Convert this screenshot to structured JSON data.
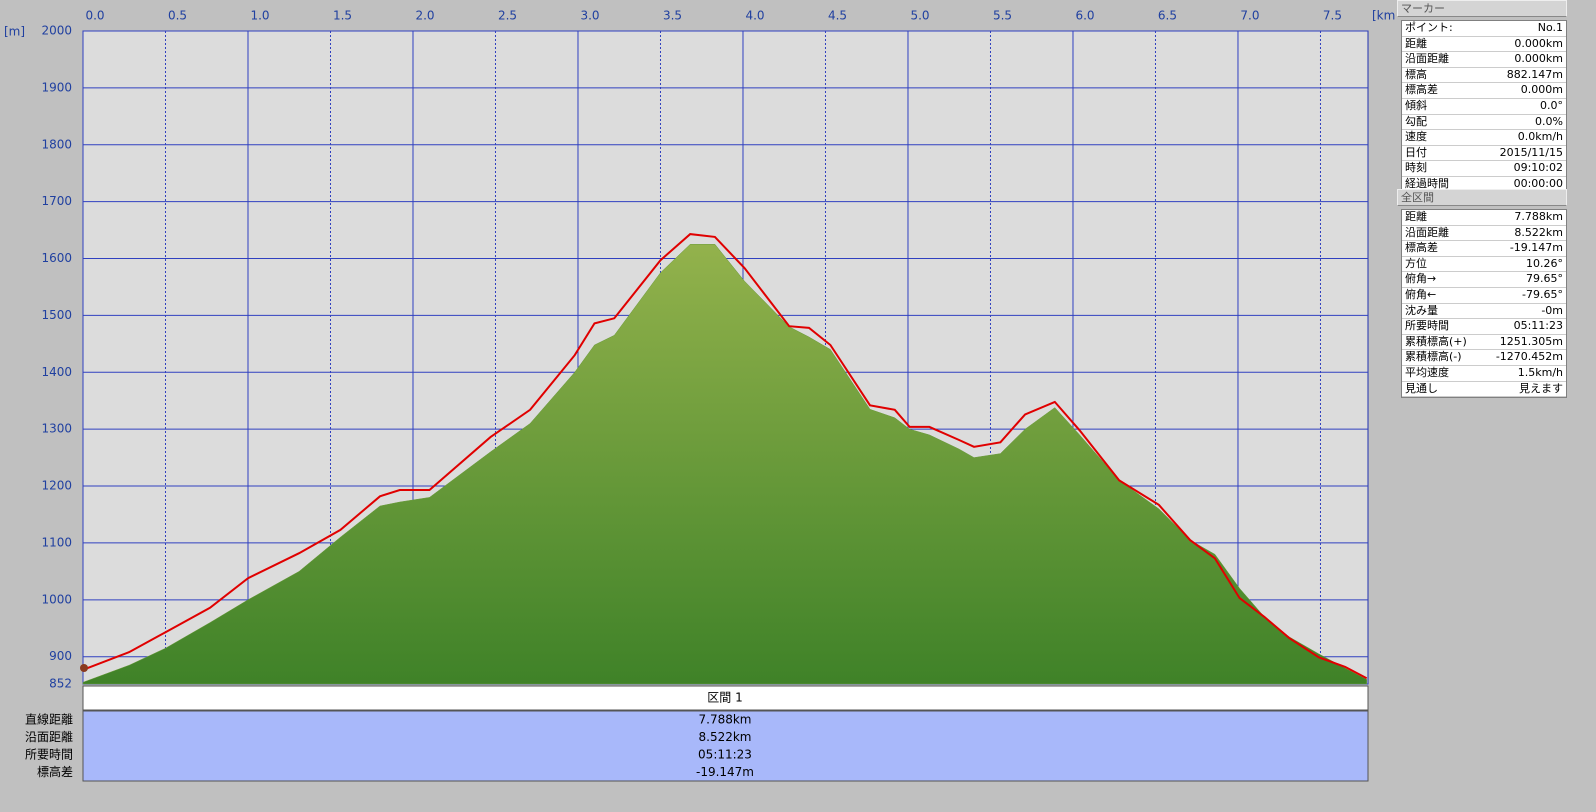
{
  "chart_data": {
    "type": "area-line",
    "x_unit": "[km]",
    "y_unit": "[m]",
    "x": [
      0,
      0.28,
      0.5,
      0.77,
      1.0,
      1.31,
      1.56,
      1.8,
      1.92,
      2.1,
      2.47,
      2.71,
      2.98,
      3.1,
      3.22,
      3.5,
      3.68,
      3.83,
      4.01,
      4.28,
      4.4,
      4.53,
      4.77,
      4.92,
      5.01,
      5.13,
      5.31,
      5.4,
      5.56,
      5.71,
      5.89,
      6.04,
      6.28,
      6.52,
      6.71,
      6.86,
      7.01,
      7.16,
      7.31,
      7.49,
      7.65,
      7.78
    ],
    "series": [
      {
        "color": "#6a9a3a",
        "values": [
          855,
          885,
          915,
          960,
          1000,
          1050,
          1110,
          1165,
          1172,
          1180,
          1260,
          1310,
          1400,
          1448,
          1465,
          1575,
          1625,
          1625,
          1560,
          1480,
          1462,
          1440,
          1335,
          1320,
          1300,
          1290,
          1265,
          1250,
          1257,
          1300,
          1338,
          1290,
          1210,
          1160,
          1105,
          1080,
          1020,
          970,
          935,
          905,
          880,
          860
        ]
      },
      {
        "color": "#e00000",
        "values": [
          877,
          908,
          943,
          986,
          1038,
          1082,
          1123,
          1182,
          1193,
          1193,
          1286,
          1334,
          1430,
          1486,
          1495,
          1597,
          1643,
          1638,
          1583,
          1481,
          1478,
          1448,
          1342,
          1334,
          1304,
          1304,
          1281,
          1269,
          1277,
          1326,
          1348,
          1298,
          1210,
          1167,
          1105,
          1073,
          1003,
          970,
          933,
          899,
          882,
          862
        ]
      }
    ],
    "xlim": [
      0,
      7.788
    ],
    "xticks": [
      {
        "value": 0,
        "label": "0.0"
      },
      0.5,
      {
        "value": 1,
        "label": "1.0"
      },
      1.5,
      {
        "value": 2,
        "label": "2.0"
      },
      2.5,
      {
        "value": 3,
        "label": "3.0"
      },
      3.5,
      {
        "value": 4,
        "label": "4.0"
      },
      4.5,
      {
        "value": 5,
        "label": "5.0"
      },
      5.5,
      {
        "value": 6,
        "label": "6.0"
      },
      6.5,
      {
        "value": 7,
        "label": "7.0"
      },
      7.5
    ],
    "ylim": [
      852,
      2000
    ],
    "yticks": [
      852,
      900,
      1000,
      1100,
      1200,
      1300,
      1400,
      1500,
      1600,
      1700,
      1800,
      1900,
      2000
    ],
    "grid": true
  },
  "section_table": {
    "header": "区間 1",
    "rows": [
      [
        "直線距離",
        "7.788km"
      ],
      [
        "沿面距離",
        "8.522km"
      ],
      [
        "所要時間",
        "05:11:23"
      ],
      [
        "標高差",
        "-19.147m"
      ]
    ]
  },
  "marker_panel": {
    "title": "マーカー",
    "rows": [
      [
        "ポイント:",
        "No.1"
      ],
      [
        "距離",
        "0.000km"
      ],
      [
        "沿面距離",
        "0.000km"
      ],
      [
        "標高",
        "882.147m"
      ],
      [
        "標高差",
        "0.000m"
      ],
      [
        "傾斜",
        "0.0°"
      ],
      [
        "勾配",
        "0.0%"
      ],
      [
        "速度",
        "0.0km/h"
      ],
      [
        "日付",
        "2015/11/15"
      ],
      [
        "時刻",
        "09:10:02"
      ],
      [
        "経過時間",
        "00:00:00"
      ]
    ]
  },
  "section_panel": {
    "title": "全区間",
    "rows": [
      [
        "距離",
        "7.788km"
      ],
      [
        "沿面距離",
        "8.522km"
      ],
      [
        "標高差",
        "-19.147m"
      ],
      [
        "方位",
        "10.26°"
      ],
      [
        "俯角→",
        "79.65°"
      ],
      [
        "俯角←",
        "-79.65°"
      ],
      [
        "沈み量",
        "-0m"
      ],
      [
        "所要時間",
        "05:11:23"
      ],
      [
        "累積標高(+)",
        "1251.305m"
      ],
      [
        "累積標高(-)",
        "-1270.452m"
      ],
      [
        "平均速度",
        "1.5km/h"
      ],
      [
        "見通し",
        "見えます"
      ]
    ]
  }
}
